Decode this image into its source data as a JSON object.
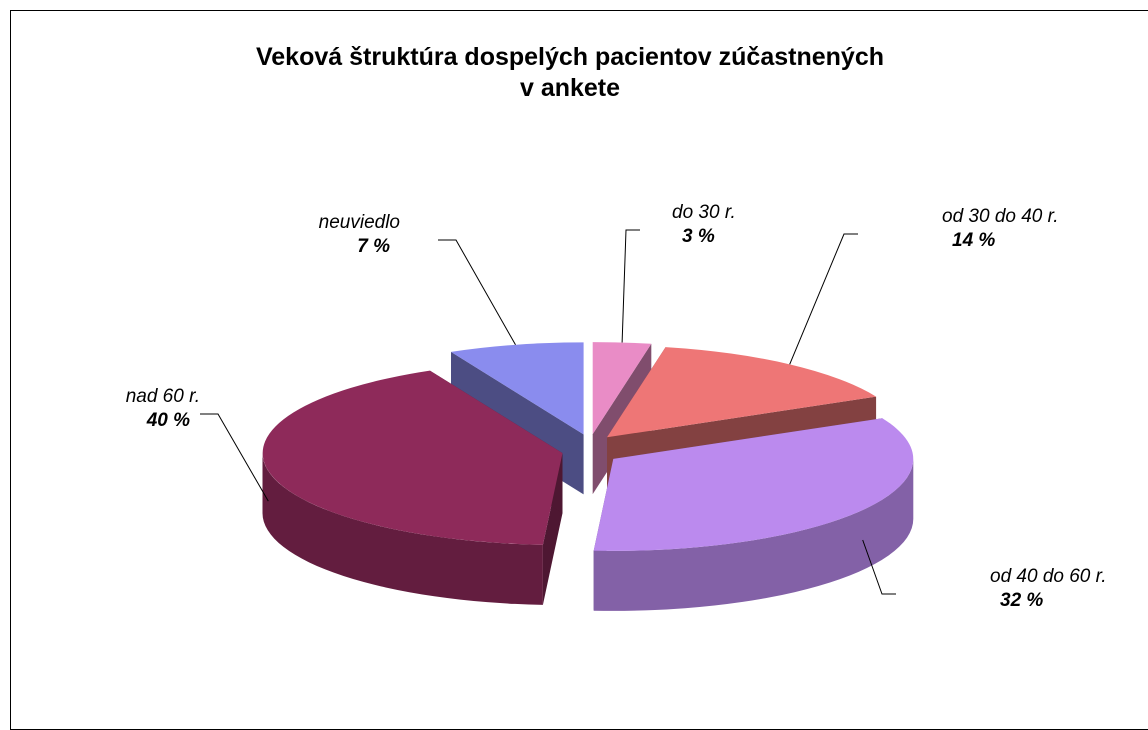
{
  "chart_data": {
    "type": "pie3d",
    "title": "Veková štruktúra dospelých pacientov zúčastnených\nv ankete",
    "categories": [
      "do 30 r.",
      "od 30 do 40 r.",
      "od 40 do 60 r.",
      "nad 60 r.",
      "neuviedlo"
    ],
    "values": [
      3,
      14,
      32,
      40,
      7
    ],
    "value_labels": [
      "3 %",
      "14 %",
      "32 %",
      "40 %",
      "7 %"
    ],
    "colors": [
      "#e98cc6",
      "#ee7676",
      "#bb8aee",
      "#8e2a5a",
      "#8a8cee"
    ]
  }
}
